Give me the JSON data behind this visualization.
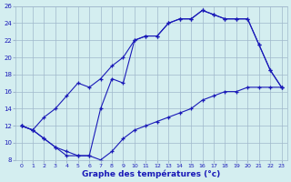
{
  "line1_x": [
    0,
    1,
    2,
    3,
    4,
    5,
    6,
    7,
    8,
    9,
    10,
    11,
    12,
    13,
    14,
    15,
    16,
    17,
    18,
    19,
    20,
    21,
    22,
    23
  ],
  "line1_y": [
    12.0,
    11.5,
    13.0,
    14.0,
    15.5,
    17.0,
    16.5,
    17.5,
    19.0,
    20.0,
    22.0,
    22.5,
    22.5,
    24.0,
    24.5,
    24.5,
    25.5,
    25.0,
    24.5,
    24.5,
    24.5,
    21.5,
    18.5,
    16.5
  ],
  "line2_x": [
    0,
    1,
    2,
    3,
    4,
    5,
    6,
    7,
    8,
    9,
    10,
    11,
    12,
    13,
    14,
    15,
    16,
    17,
    18,
    19,
    20,
    21,
    22,
    23
  ],
  "line2_y": [
    12.0,
    11.5,
    10.5,
    9.5,
    8.5,
    8.5,
    8.5,
    14.0,
    17.5,
    17.0,
    22.0,
    22.5,
    22.5,
    24.0,
    24.5,
    24.5,
    25.5,
    25.0,
    24.5,
    24.5,
    24.5,
    21.5,
    18.5,
    16.5
  ],
  "line3_x": [
    0,
    1,
    2,
    3,
    4,
    5,
    6,
    7,
    8,
    9,
    10,
    11,
    12,
    13,
    14,
    15,
    16,
    17,
    18,
    19,
    20,
    21,
    22,
    23
  ],
  "line3_y": [
    12.0,
    11.5,
    10.5,
    9.5,
    9.0,
    8.5,
    8.5,
    8.0,
    9.0,
    10.5,
    11.5,
    12.0,
    12.5,
    13.0,
    13.5,
    14.0,
    15.0,
    15.5,
    16.0,
    16.0,
    16.5,
    16.5,
    16.5,
    16.5
  ],
  "line_color": "#1a1ab8",
  "bg_color": "#d4eef0",
  "grid_color": "#a0b8cc",
  "xlabel": "Graphe des températures (°c)",
  "ylim": [
    8,
    26
  ],
  "xlim_min": -0.5,
  "xlim_max": 23.5,
  "yticks": [
    8,
    10,
    12,
    14,
    16,
    18,
    20,
    22,
    24,
    26
  ],
  "xticks": [
    0,
    1,
    2,
    3,
    4,
    5,
    6,
    7,
    8,
    9,
    10,
    11,
    12,
    13,
    14,
    15,
    16,
    17,
    18,
    19,
    20,
    21,
    22,
    23
  ]
}
